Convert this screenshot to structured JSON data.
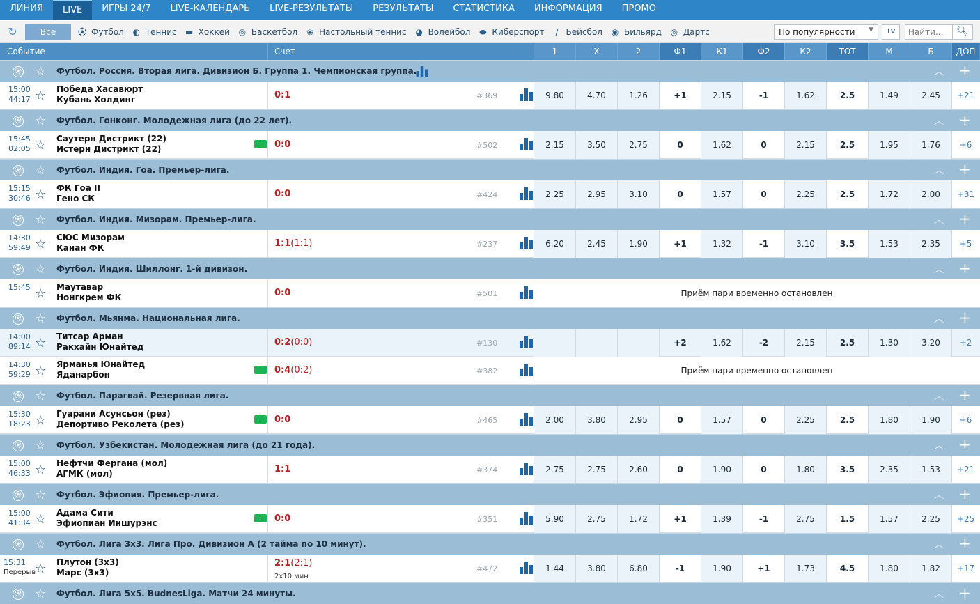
{
  "nav": {
    "tabs": [
      "ЛИНИЯ",
      "LIVE",
      "ИГРЫ 24/7",
      "LIVE-КАЛЕНДАРЬ",
      "LIVE-РЕЗУЛЬТАТЫ",
      "РЕЗУЛЬТАТЫ",
      "СТАТИСТИКА",
      "ИНФОРМАЦИЯ",
      "ПРОМО"
    ],
    "active": 1
  },
  "sports": {
    "all": "Все",
    "items": [
      {
        "label": "Футбол",
        "icon": "soccer-ball-icon"
      },
      {
        "label": "Теннис",
        "icon": "tennis-ball-icon"
      },
      {
        "label": "Хоккей",
        "icon": "hockey-puck-icon"
      },
      {
        "label": "Баскетбол",
        "icon": "basketball-icon"
      },
      {
        "label": "Настольный теннис",
        "icon": "table-tennis-icon"
      },
      {
        "label": "Волейбол",
        "icon": "volleyball-icon"
      },
      {
        "label": "Киберспорт",
        "icon": "gamepad-icon"
      },
      {
        "label": "Бейсбол",
        "icon": "baseball-bat-icon"
      },
      {
        "label": "Бильярд",
        "icon": "billiard-ball-icon"
      },
      {
        "label": "Дартс",
        "icon": "dartboard-icon"
      }
    ]
  },
  "sort": {
    "selected": "По популярности"
  },
  "search": {
    "placeholder": "Найти..."
  },
  "columns": {
    "event": "Событие",
    "score": "Счет",
    "odds": [
      "1",
      "X",
      "2",
      "Ф1",
      "К1",
      "Ф2",
      "К2",
      "ТОТ",
      "М",
      "Б",
      "ДОП"
    ]
  },
  "suspended_text": "Приём пари временно остановлен",
  "blocks": [
    {
      "league": "Футбол. Россия. Вторая лига. Дивизион Б. Группа 1. Чемпионская группа.",
      "stats_icon": true,
      "matches": [
        {
          "t1": "15:00",
          "t2": "44:17",
          "home": "Победа Хасавюрт",
          "away": "Кубань Холдинг",
          "score": "0:1",
          "hs": "",
          "num": "#369",
          "odds": [
            "9.80",
            "4.70",
            "1.26",
            "+1",
            "2.15",
            "-1",
            "1.62",
            "2.5",
            "1.49",
            "2.45",
            "+21"
          ]
        }
      ]
    },
    {
      "league": "Футбол. Гонконг. Молодежная лига (до 22 лет).",
      "matches": [
        {
          "t1": "15:45",
          "t2": "02:05",
          "home": "Саутерн Дистрикт (22)",
          "away": "Истерн Дистрикт (22)",
          "field": true,
          "score": "0:0",
          "hs": "",
          "num": "#502",
          "odds": [
            "2.15",
            "3.50",
            "2.75",
            "0",
            "1.62",
            "0",
            "2.15",
            "2.5",
            "1.95",
            "1.76",
            "+6"
          ]
        }
      ]
    },
    {
      "league": "Футбол. Индия. Гоа. Премьер-лига.",
      "matches": [
        {
          "t1": "15:15",
          "t2": "30:46",
          "home": "ФК Гоа II",
          "away": "Гено СК",
          "score": "0:0",
          "hs": "",
          "num": "#424",
          "odds": [
            "2.25",
            "2.95",
            "3.10",
            "0",
            "1.57",
            "0",
            "2.25",
            "2.5",
            "1.72",
            "2.00",
            "+31"
          ]
        }
      ]
    },
    {
      "league": "Футбол. Индия. Мизорам. Премьер-лига.",
      "matches": [
        {
          "t1": "14:30",
          "t2": "59:49",
          "home": "СЮС Мизорам",
          "away": "Канан ФК",
          "score": "1:1",
          "hs": "(1:1)",
          "num": "#237",
          "odds": [
            "6.20",
            "2.45",
            "1.90",
            "+1",
            "1.32",
            "-1",
            "3.10",
            "3.5",
            "1.53",
            "2.35",
            "+5"
          ]
        }
      ]
    },
    {
      "league": "Футбол. Индия. Шиллонг. 1-й дивизон.",
      "matches": [
        {
          "t1": "15:45",
          "t2": "",
          "home": "Маутавар",
          "away": "Нонгкрем ФК",
          "score": "0:0",
          "hs": "",
          "num": "#501",
          "suspended": true
        }
      ]
    },
    {
      "league": "Футбол. Мьянма. Национальная лига.",
      "matches": [
        {
          "t1": "14:00",
          "t2": "89:14",
          "home": "Титсар Арман",
          "away": "Ракхайн Юнайтед",
          "score": "0:2",
          "hs": "(0:0)",
          "num": "#130",
          "hl": true,
          "odds": [
            "",
            "",
            "",
            "+2",
            "1.62",
            "-2",
            "2.15",
            "2.5",
            "1.30",
            "3.20",
            "+2"
          ]
        },
        {
          "t1": "14:30",
          "t2": "59:29",
          "home": "Ярманья Юнайтед",
          "away": "Яданарбон",
          "field": true,
          "score": "0:4",
          "hs": "(0:2)",
          "num": "#382",
          "suspended": true
        }
      ]
    },
    {
      "league": "Футбол. Парагвай. Резервная лига.",
      "matches": [
        {
          "t1": "15:30",
          "t2": "18:23",
          "home": "Гуарани Асунсьон (рез)",
          "away": "Депортиво Реколета (рез)",
          "field": true,
          "score": "0:0",
          "hs": "",
          "num": "#465",
          "odds": [
            "2.00",
            "3.80",
            "2.95",
            "0",
            "1.57",
            "0",
            "2.25",
            "2.5",
            "1.80",
            "1.90",
            "+6"
          ]
        }
      ]
    },
    {
      "league": "Футбол. Узбекистан. Молодежная лига (до 21 года).",
      "matches": [
        {
          "t1": "15:00",
          "t2": "46:33",
          "home": "Нефтчи Фергана (мол)",
          "away": "АГМК (мол)",
          "score": "1:1",
          "hs": "",
          "num": "#374",
          "odds": [
            "2.75",
            "2.75",
            "2.60",
            "0",
            "1.90",
            "0",
            "1.80",
            "3.5",
            "2.35",
            "1.53",
            "+21"
          ]
        }
      ]
    },
    {
      "league": "Футбол. Эфиопия. Премьер-лига.",
      "matches": [
        {
          "t1": "15:00",
          "t2": "41:34",
          "home": "Адама Сити",
          "away": "Эфиопиан Иншурэнс",
          "field": true,
          "score": "0:0",
          "hs": "",
          "num": "#351",
          "odds": [
            "5.90",
            "2.75",
            "1.72",
            "+1",
            "1.39",
            "-1",
            "2.75",
            "1.5",
            "1.57",
            "2.25",
            "+25"
          ]
        }
      ]
    },
    {
      "league": "Футбол. Лига 3х3. Лига Про. Дивизион А (2 тайма по 10 минут).",
      "matches": [
        {
          "t1": "15:31",
          "t2": "Перерыв",
          "home": "Плутон (3х3)",
          "away": "Марс (3х3)",
          "score": "2:1",
          "hs": "(2:1)",
          "sub": "2х10 мин",
          "num": "#472",
          "odds": [
            "1.44",
            "3.80",
            "6.80",
            "-1",
            "1.90",
            "+1",
            "1.73",
            "4.5",
            "1.80",
            "1.82",
            "+17"
          ]
        }
      ]
    },
    {
      "league": "Футбол. Лига 5х5. BudnesLiga. Матчи 24 минуты.",
      "matches": []
    }
  ]
}
